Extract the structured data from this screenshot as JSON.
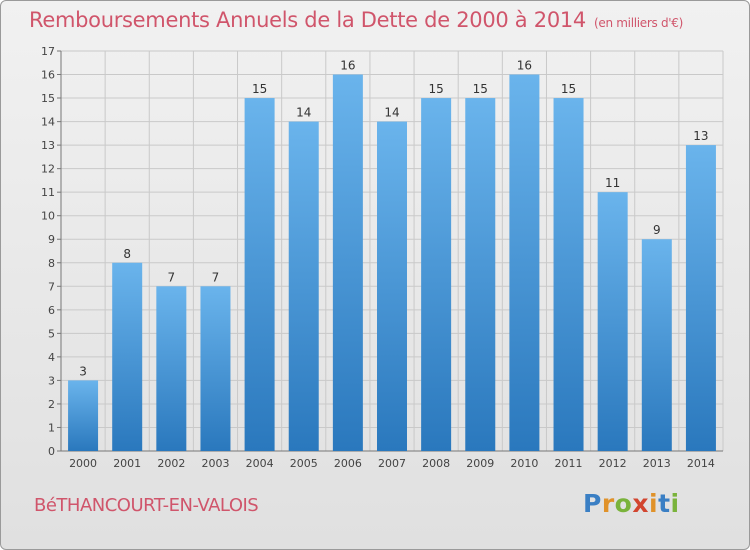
{
  "title": "Remboursements Annuels de la Dette de 2000 à 2014",
  "title_unit": "(en milliers d'€)",
  "commune": "BéTHANCOURT-EN-VALOIS",
  "logo": {
    "letters": [
      "P",
      "r",
      "o",
      "x",
      "i",
      "t",
      "i"
    ],
    "colors": [
      "#3a7fc4",
      "#e0922a",
      "#7ab33b",
      "#d2452f",
      "#e0922a",
      "#3a7fc4",
      "#7ab33b"
    ]
  },
  "colors": {
    "title": "#d0556b",
    "bar_top": "#6ab4ec",
    "bar_bottom": "#2a78bd",
    "grid": "#c9c9c9"
  },
  "chart_data": {
    "type": "bar",
    "title": "Remboursements Annuels de la Dette de 2000 à 2014",
    "categories": [
      "2000",
      "2001",
      "2002",
      "2003",
      "2004",
      "2005",
      "2006",
      "2007",
      "2008",
      "2009",
      "2010",
      "2011",
      "2012",
      "2013",
      "2014"
    ],
    "values": [
      3,
      8,
      7,
      7,
      15,
      14,
      16,
      14,
      15,
      15,
      16,
      15,
      11,
      9,
      13
    ],
    "ylim": [
      0,
      17
    ],
    "yticks": [
      "0",
      "1",
      "2",
      "3",
      "4",
      "5",
      "6",
      "7",
      "8",
      "9",
      "10",
      "11",
      "12",
      "13",
      "14",
      "15",
      "16",
      "17"
    ],
    "grid": true,
    "data_labels": true
  }
}
